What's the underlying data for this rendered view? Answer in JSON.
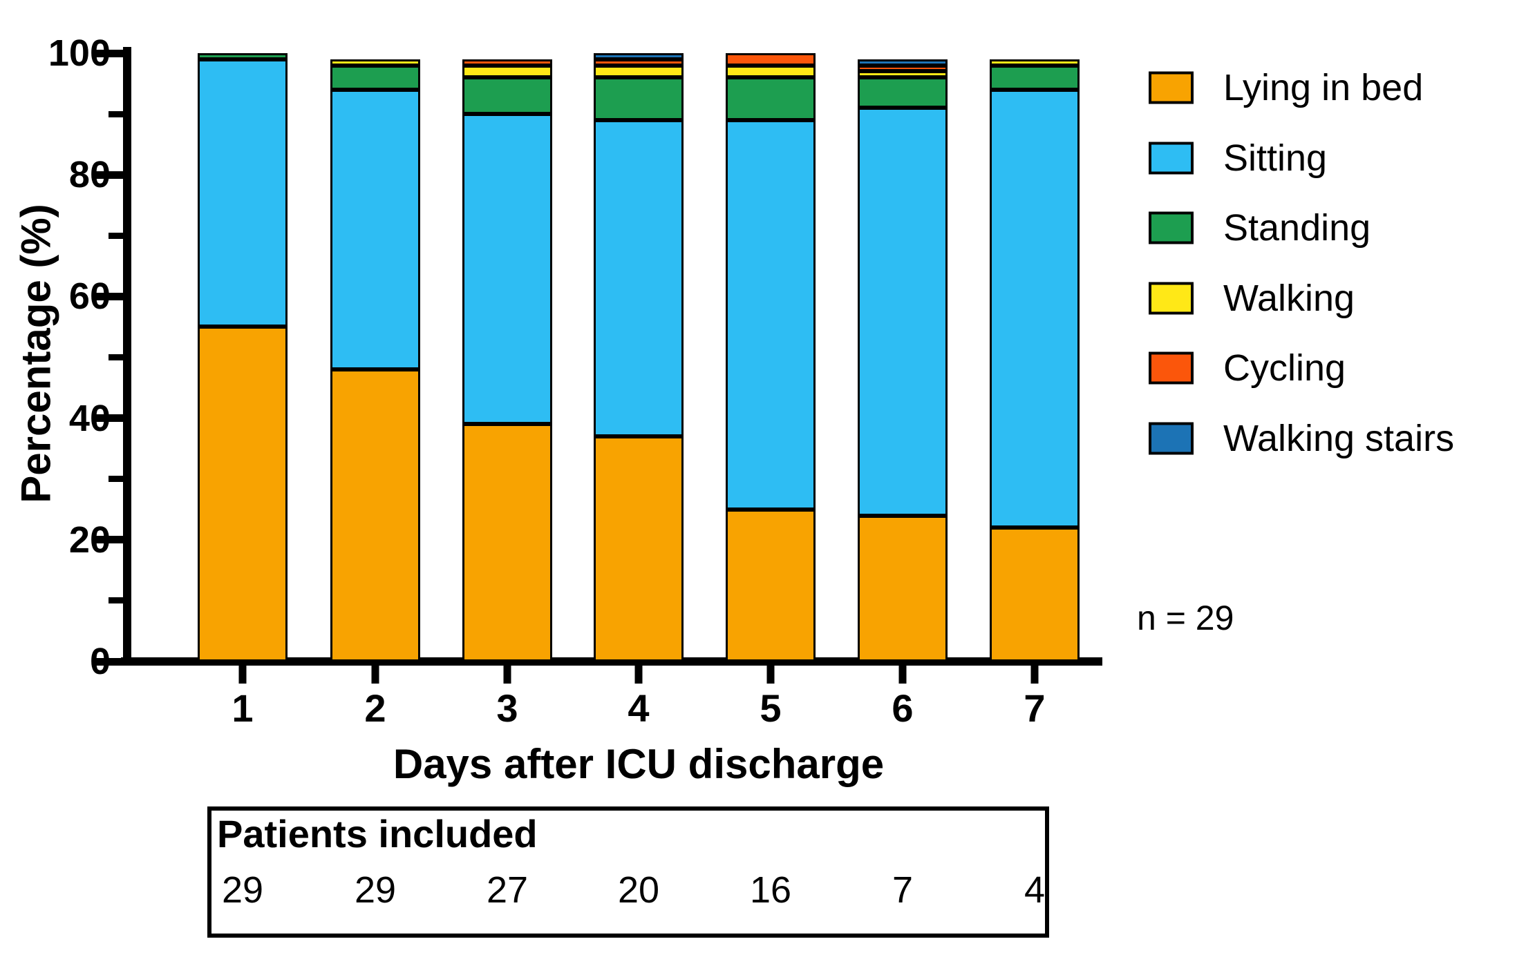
{
  "chart_data": {
    "type": "bar",
    "stacked": true,
    "title": "",
    "xlabel": "Days after ICU discharge",
    "ylabel": "Percentage (%)",
    "annotation": "n = 29",
    "ylim": [
      0,
      100
    ],
    "yticks": [
      0,
      20,
      40,
      60,
      80,
      100
    ],
    "yticks_minor": [
      10,
      30,
      50,
      70,
      90
    ],
    "grid": false,
    "legend_position": "right",
    "categories": [
      "1",
      "2",
      "3",
      "4",
      "5",
      "6",
      "7"
    ],
    "series": [
      {
        "name": "Lying in bed",
        "color": "#F8A301",
        "values": [
          55,
          48,
          39,
          37,
          25,
          24,
          22
        ]
      },
      {
        "name": "Sitting",
        "color": "#2EBDF3",
        "values": [
          44,
          46,
          51,
          52,
          64,
          67,
          72
        ]
      },
      {
        "name": "Standing",
        "color": "#1D9E50",
        "values": [
          1,
          4,
          6,
          7,
          7,
          5,
          4
        ]
      },
      {
        "name": "Walking",
        "color": "#FFE817",
        "values": [
          0,
          1,
          2,
          2,
          2,
          1,
          1
        ]
      },
      {
        "name": "Cycling",
        "color": "#FB560B",
        "values": [
          0,
          0,
          1,
          1,
          2,
          1,
          0
        ]
      },
      {
        "name": "Walking stairs",
        "color": "#1C73B5",
        "values": [
          0,
          0,
          0,
          1,
          0,
          1,
          0
        ]
      }
    ],
    "table_title": "Patients included",
    "patients_included": [
      29,
      29,
      27,
      20,
      16,
      7,
      4
    ],
    "axis_color": "#000000",
    "background_color": "#FFFFFF"
  }
}
